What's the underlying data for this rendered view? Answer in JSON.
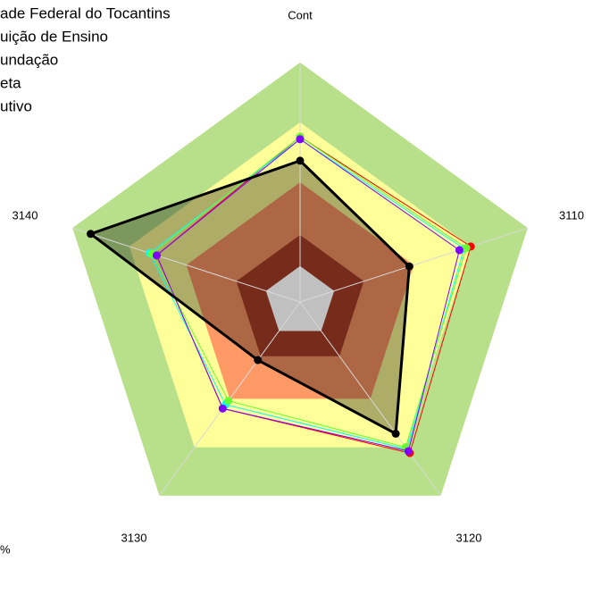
{
  "chart_data": {
    "type": "radar",
    "legend_labels": [
      "ade Federal do Tocantins",
      "uição de Ensino",
      "undação",
      "eta",
      "utivo"
    ],
    "categories": [
      "Cont",
      "3110",
      "3120",
      "3130",
      "3140"
    ],
    "rlim": [
      0,
      100
    ],
    "bands": [
      {
        "value": 100,
        "color": "#b8e08a"
      },
      {
        "value": 75,
        "color": "#ffff99"
      },
      {
        "value": 50,
        "color": "#ff9966"
      },
      {
        "value": 28,
        "color": "#b04028"
      },
      {
        "value": 15,
        "color": "#c0c0c0"
      }
    ],
    "note": "%",
    "series": [
      {
        "color": "#ff0000",
        "values": [
          69,
          75,
          78,
          55,
          63
        ]
      },
      {
        "color": "#00ffff",
        "values": [
          68,
          72,
          76,
          53,
          66
        ]
      },
      {
        "color": "#66ff33",
        "values": [
          69,
          73,
          75,
          51,
          65
        ]
      },
      {
        "color": "#7f00ff",
        "values": [
          68,
          70,
          77,
          55,
          63
        ]
      },
      {
        "color": "#000000",
        "values": [
          59,
          48,
          68,
          30,
          92
        ],
        "fill": true
      }
    ]
  }
}
